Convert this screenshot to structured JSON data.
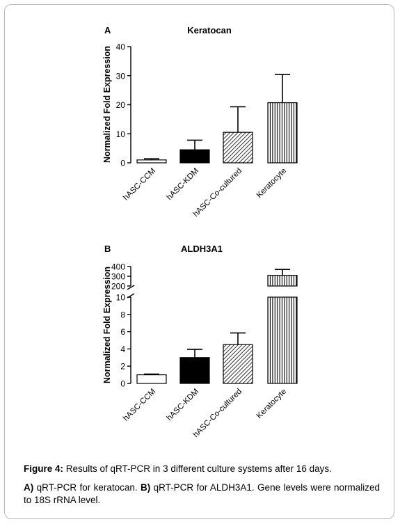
{
  "figure": {
    "caption_label": "Figure 4:",
    "caption_text": " Results of qRT-PCR in 3 different culture systems after 16 days.",
    "desc_a_label": "A)",
    "desc_a_text": " qRT-PCR for keratocan. ",
    "desc_b_label": "B)",
    "desc_b_text": " qRT-PCR for ALDH3A1. Gene levels were normalized to 18S rRNA level."
  },
  "chart_data": [
    {
      "type": "bar",
      "panel_label": "A",
      "title": "Keratocan",
      "ylabel": "Normalized Fold Expression",
      "xlabel": "",
      "categories": [
        "hASC-CCM",
        "hASC-KDM",
        "hASC-Co-cultured",
        "Keratocyte"
      ],
      "values": [
        1,
        4.5,
        10.5,
        20.7
      ],
      "errors": [
        0.4,
        3.3,
        8.8,
        9.7
      ],
      "fills": [
        "white",
        "black",
        "diagonal-hatch",
        "vertical-hatch"
      ],
      "ylim": [
        0,
        40
      ],
      "yticks": [
        0,
        10,
        20,
        30,
        40
      ],
      "broken_axis": false,
      "grid": false
    },
    {
      "type": "bar",
      "panel_label": "B",
      "title": "ALDH3A1",
      "ylabel": "Normalized Fold Expression",
      "xlabel": "",
      "categories": [
        "hASC-CCM",
        "hASC-KDM",
        "hASC-Co-cultured",
        "Keratocyte"
      ],
      "values": [
        1,
        3,
        4.5,
        310
      ],
      "errors": [
        0.08,
        0.95,
        1.35,
        60
      ],
      "fills": [
        "white",
        "black",
        "diagonal-hatch",
        "vertical-hatch"
      ],
      "ylim": [
        0,
        400
      ],
      "broken_axis": true,
      "lower_segment": {
        "range": [
          0,
          10
        ],
        "ticks": [
          0,
          2,
          4,
          6,
          8,
          10
        ]
      },
      "upper_segment": {
        "range": [
          200,
          400
        ],
        "ticks": [
          200,
          300,
          400
        ]
      },
      "grid": false
    }
  ]
}
